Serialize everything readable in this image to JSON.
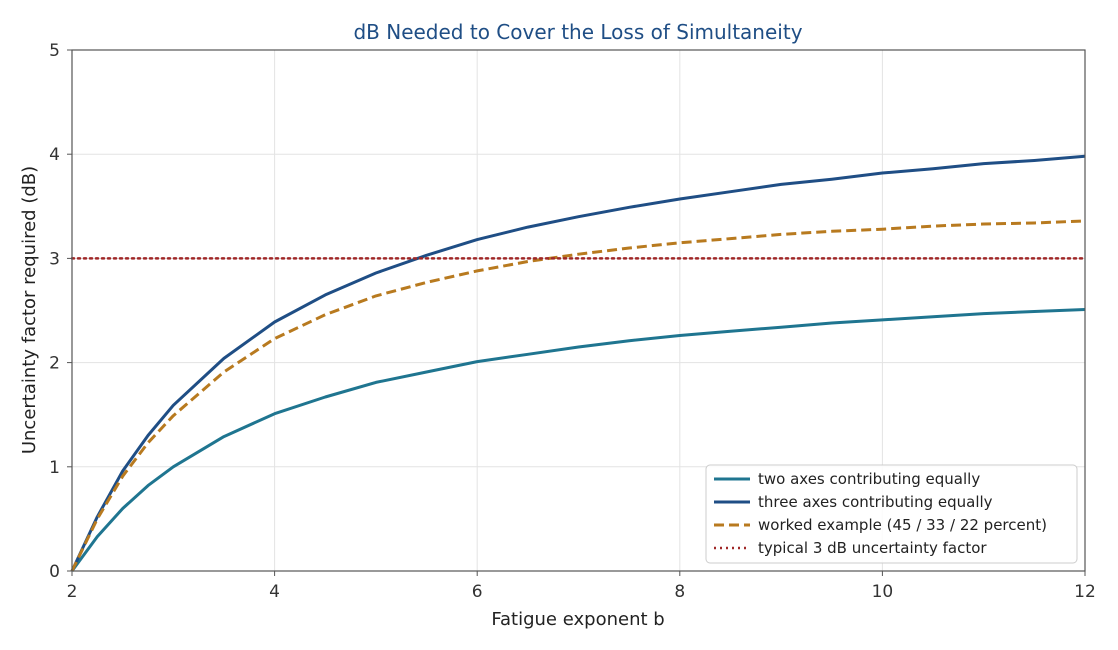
{
  "chart_data": {
    "type": "line",
    "title": "dB Needed to Cover the Loss of Simultaneity",
    "title_color": "#1f4e85",
    "xlabel": "Fatigue exponent  b",
    "ylabel": "Uncertainty factor required (dB)",
    "xlim": [
      2,
      12
    ],
    "ylim": [
      0,
      5
    ],
    "xticks": [
      2,
      4,
      6,
      8,
      10,
      12
    ],
    "yticks": [
      0,
      1,
      2,
      3,
      4,
      5
    ],
    "grid": true,
    "legend_position": "lower-right",
    "x": [
      2,
      2.25,
      2.5,
      2.75,
      3,
      3.5,
      4,
      4.5,
      5,
      5.5,
      6,
      6.5,
      7,
      7.5,
      8,
      8.5,
      9,
      9.5,
      10,
      10.5,
      11,
      11.5,
      12
    ],
    "series": [
      {
        "name": "two axes contributing equally",
        "color": "#1f7590",
        "style": "solid",
        "values": [
          0,
          0.33,
          0.6,
          0.82,
          1.0,
          1.29,
          1.51,
          1.67,
          1.81,
          1.91,
          2.01,
          2.08,
          2.15,
          2.21,
          2.26,
          2.3,
          2.34,
          2.38,
          2.41,
          2.44,
          2.47,
          2.49,
          2.51
        ]
      },
      {
        "name": "three axes contributing equally",
        "color": "#1f4e85",
        "style": "solid",
        "values": [
          0,
          0.52,
          0.96,
          1.3,
          1.59,
          2.04,
          2.39,
          2.65,
          2.86,
          3.03,
          3.18,
          3.3,
          3.4,
          3.49,
          3.57,
          3.64,
          3.71,
          3.76,
          3.82,
          3.86,
          3.91,
          3.94,
          3.98
        ]
      },
      {
        "name": "worked example (45 / 33 / 22 percent)",
        "color": "#b87a1f",
        "style": "dashed",
        "values": [
          0,
          0.5,
          0.91,
          1.23,
          1.49,
          1.91,
          2.23,
          2.46,
          2.64,
          2.77,
          2.88,
          2.97,
          3.04,
          3.1,
          3.15,
          3.19,
          3.23,
          3.26,
          3.28,
          3.31,
          3.33,
          3.34,
          3.36
        ]
      },
      {
        "name": "typical 3 dB uncertainty factor",
        "color": "#a02828",
        "style": "dotted",
        "values": [
          3,
          3,
          3,
          3,
          3,
          3,
          3,
          3,
          3,
          3,
          3,
          3,
          3,
          3,
          3,
          3,
          3,
          3,
          3,
          3,
          3,
          3,
          3
        ]
      }
    ]
  }
}
